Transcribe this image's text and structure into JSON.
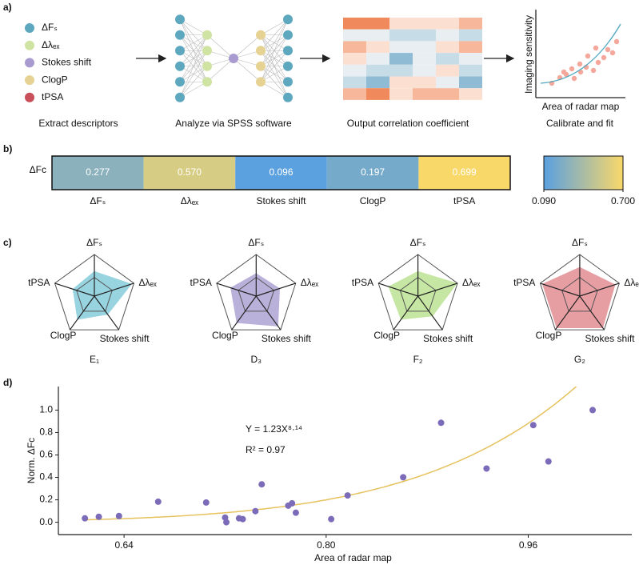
{
  "panel_labels": [
    "a)",
    "b)",
    "c)",
    "d)"
  ],
  "workflow": {
    "descriptors": [
      {
        "name": "ΔFₛ",
        "color": "#5ea8bf"
      },
      {
        "name": "Δλₑₓ",
        "color": "#cfe3a2"
      },
      {
        "name": "Stokes shift",
        "color": "#a99bd0"
      },
      {
        "name": "ClogP",
        "color": "#e6d292"
      },
      {
        "name": "tPSA",
        "color": "#c9505a"
      }
    ],
    "steps": [
      "Extract descriptors",
      "Analyze via SPSS software",
      "Output correlation coefficient",
      "Calibrate and fit"
    ],
    "inset_y_label": "Imaging sensitivity",
    "inset_x_label": "Area of radar map"
  },
  "chart_data": [
    {
      "type": "heatmap",
      "row_label": "ΔFc",
      "categories": [
        "ΔFₛ",
        "Δλₑₓ",
        "Stokes shift",
        "ClogP",
        "tPSA"
      ],
      "values": [
        0.277,
        0.57,
        0.096,
        0.197,
        0.699
      ],
      "value_labels": [
        "0.277",
        "0.570",
        "0.096",
        "0.197",
        "0.699"
      ],
      "colorscale": [
        "#5aa0e0",
        "#f9d86a"
      ],
      "clim": [
        0.09,
        0.7
      ],
      "cticks": [
        {
          "value": 0.09,
          "label": "0.090"
        },
        {
          "value": 0.7,
          "label": "0.700"
        }
      ]
    },
    {
      "type": "radar",
      "title": "E₁",
      "axes": [
        "ΔFₛ",
        "Δλₑₓ",
        "Stokes shift",
        "ClogP",
        "tPSA"
      ],
      "values": [
        0.6,
        0.95,
        0.55,
        0.7,
        0.55
      ],
      "color": "#7ec8d8",
      "rlim": [
        0,
        1
      ],
      "rticks": [
        0.45,
        1
      ]
    },
    {
      "type": "radar",
      "title": "D₃",
      "axes": [
        "ΔFₛ",
        "Δλₑₓ",
        "Stokes shift",
        "ClogP",
        "tPSA"
      ],
      "values": [
        0.55,
        0.6,
        0.9,
        0.8,
        0.65
      ],
      "color": "#a89ed0",
      "rlim": [
        0,
        1
      ],
      "rticks": [
        0.45,
        1
      ]
    },
    {
      "type": "radar",
      "title": "F₂",
      "axes": [
        "ΔFₛ",
        "Δλₑₓ",
        "Stokes shift",
        "ClogP",
        "tPSA"
      ],
      "values": [
        0.6,
        1.0,
        0.6,
        0.7,
        0.75
      ],
      "color": "#b8e08c",
      "rlim": [
        0,
        1
      ],
      "rticks": [
        0.45,
        1
      ]
    },
    {
      "type": "radar",
      "title": "G₂",
      "axes": [
        "ΔFₛ",
        "Δλₑₓ",
        "Stokes shift",
        "ClogP",
        "tPSA"
      ],
      "values": [
        0.7,
        0.9,
        0.95,
        0.95,
        0.95
      ],
      "color": "#e0868c",
      "rlim": [
        0,
        1
      ],
      "rticks": [
        0.45,
        1
      ]
    },
    {
      "type": "scatter",
      "x_label": "Area of radar map",
      "y_label": "Norm. ΔFc",
      "x": [
        0.609,
        0.62,
        0.636,
        0.667,
        0.705,
        0.72,
        0.721,
        0.731,
        0.734,
        0.744,
        0.749,
        0.77,
        0.773,
        0.776,
        0.804,
        0.817,
        0.861,
        0.891,
        0.927,
        0.964,
        0.976,
        1.011
      ],
      "values": [
        0.035,
        0.049,
        0.056,
        0.183,
        0.176,
        0.042,
        0.0,
        0.035,
        0.028,
        0.099,
        0.338,
        0.148,
        0.169,
        0.085,
        0.028,
        0.239,
        0.401,
        0.887,
        0.479,
        0.866,
        0.542,
        1.0
      ],
      "color": "#7b6bb8",
      "xlim": [
        0.588,
        1.042
      ],
      "ylim": [
        -0.11,
        1.21
      ],
      "xticks": [
        0.64,
        {
          "value": 0.8,
          "label": "0.80"
        },
        0.96
      ],
      "yticks": [
        {
          "value": 0,
          "label": "0.0"
        },
        0.2,
        0.4,
        0.6,
        0.8,
        {
          "value": 1,
          "label": "1.0"
        }
      ],
      "fit": {
        "coefficient": 1.23,
        "exponent": 8.14,
        "color": "#e6c25e"
      },
      "annotations": [
        "Y = 1.23X⁸·¹⁴",
        "R² = 0.97"
      ]
    }
  ]
}
